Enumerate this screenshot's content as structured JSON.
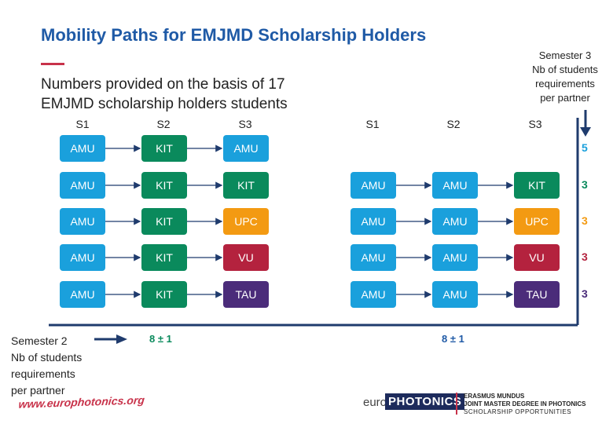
{
  "title": "Mobility Paths for EMJMD Scholarship Holders",
  "subtitle_line1": "Numbers provided on the basis of 17",
  "subtitle_line2": "EMJMD scholarship holders students",
  "semester3_label": {
    "line1": "Semester 3",
    "line2": "Nb of students",
    "line3": "requirements",
    "line4": "per partner"
  },
  "semester2_label": {
    "line1": "Semester 2",
    "line2": "Nb of students",
    "line3": "requirements",
    "line4": "per partner"
  },
  "column_headers": [
    "S1",
    "S2",
    "S3"
  ],
  "colors": {
    "blue": "#1aa0dc",
    "green": "#0a8a5c",
    "orange": "#f39a12",
    "red": "#b4223e",
    "purple": "#4b2c7a",
    "arrow": "#1f3b6d",
    "title": "#1f5aa6",
    "accent": "#c8324a"
  },
  "left_group": {
    "rows": [
      {
        "s1": "AMU",
        "s2": "KIT",
        "s3": "AMU",
        "s3_color": "blue"
      },
      {
        "s1": "AMU",
        "s2": "KIT",
        "s3": "KIT",
        "s3_color": "green"
      },
      {
        "s1": "AMU",
        "s2": "KIT",
        "s3": "UPC",
        "s3_color": "orange"
      },
      {
        "s1": "AMU",
        "s2": "KIT",
        "s3": "VU",
        "s3_color": "red"
      },
      {
        "s1": "AMU",
        "s2": "KIT",
        "s3": "TAU",
        "s3_color": "purple"
      }
    ],
    "total": "8 ± 1"
  },
  "right_group": {
    "rows": [
      {
        "s1": "AMU",
        "s2": "AMU",
        "s3": "KIT",
        "s3_color": "green"
      },
      {
        "s1": "AMU",
        "s2": "AMU",
        "s3": "UPC",
        "s3_color": "orange"
      },
      {
        "s1": "AMU",
        "s2": "AMU",
        "s3": "VU",
        "s3_color": "red"
      },
      {
        "s1": "AMU",
        "s2": "AMU",
        "s3": "TAU",
        "s3_color": "purple"
      }
    ],
    "total": "8 ± 1"
  },
  "semester3_counts": [
    {
      "value": "5",
      "color": "blue"
    },
    {
      "value": "3",
      "color": "green"
    },
    {
      "value": "3",
      "color": "orange"
    },
    {
      "value": "3",
      "color": "red"
    },
    {
      "value": "3",
      "color": "purple"
    }
  ],
  "footer": {
    "url": "www.europhotonics.org",
    "logo_euro": "euro",
    "logo_photonics": "PHOTONICS",
    "em_line1": "ERASMUS MUNDUS",
    "em_line2": "JOINT MASTER DEGREE IN PHOTONICS",
    "em_line3": "SCHOLARSHIP OPPORTUNITIES"
  }
}
